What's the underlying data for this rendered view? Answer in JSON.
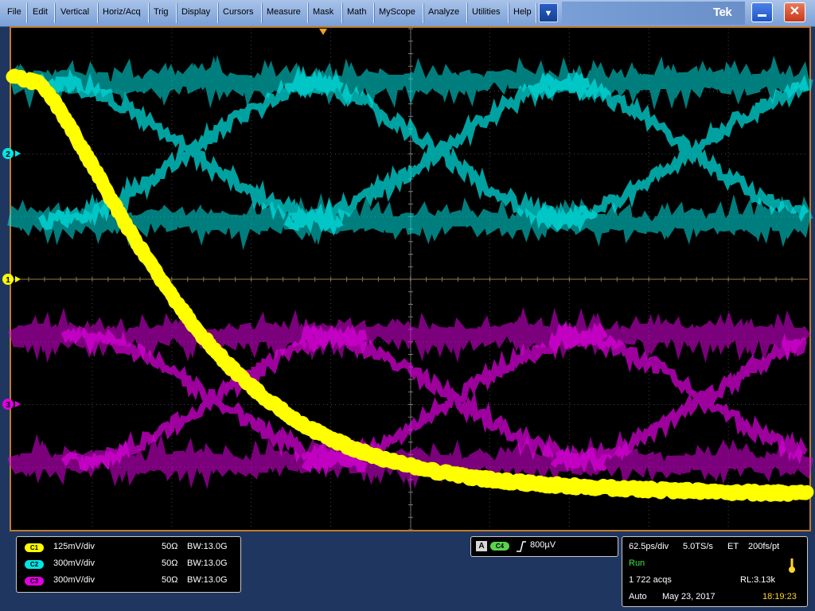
{
  "menu": {
    "items": [
      "File",
      "Edit",
      "Vertical",
      "Horiz/Acq",
      "Trig",
      "Display",
      "Cursors",
      "Measure",
      "Mask",
      "Math",
      "MyScope",
      "Analyze",
      "Utilities",
      "Help"
    ],
    "dropdown_icon": "▼",
    "brand": "Tek",
    "minimize_icon": "minimize-icon",
    "close_icon": "✕"
  },
  "markers": {
    "ch1": "1",
    "ch2": "2",
    "ch3": "3"
  },
  "colors": {
    "ch1": "#ffff00",
    "ch2": "#00e5e5",
    "ch3": "#e000e0",
    "ch4": "#58d34a",
    "graticule_border": "#c07a2a",
    "run": "#3ee53e",
    "clock": "#ffd42a"
  },
  "channels": [
    {
      "badge": "C1",
      "scale": "125mV/div",
      "impedance": "50Ω",
      "bandwidth": "BW:13.0G"
    },
    {
      "badge": "C2",
      "scale": "300mV/div",
      "impedance": "50Ω",
      "bandwidth": "BW:13.0G"
    },
    {
      "badge": "C3",
      "scale": "300mV/div",
      "impedance": "50Ω",
      "bandwidth": "BW:13.0G"
    }
  ],
  "trigger": {
    "mode_badge": "A",
    "source": "C4",
    "slope_icon": "rising-edge-icon",
    "level": "800µV"
  },
  "acquisition": {
    "timebase": "62.5ps/div",
    "sample_rate": "5.0TS/s",
    "mode": "ET",
    "resolution": "200fs/pt",
    "status": "Run",
    "acqs": "1 722 acqs",
    "record_length": "RL:3.13k",
    "trigger_mode": "Auto",
    "date": "May 23, 2017",
    "time": "18:19:23"
  }
}
